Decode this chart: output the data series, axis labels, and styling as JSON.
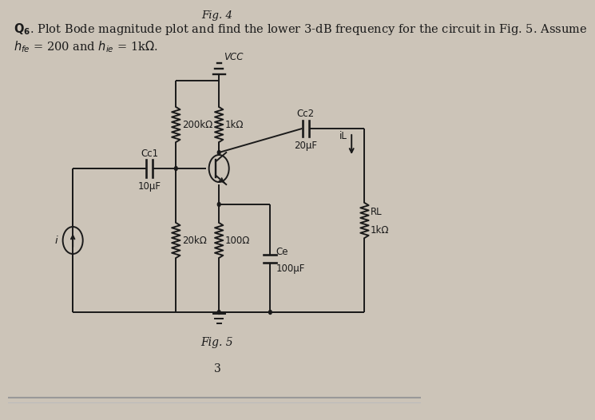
{
  "bg_color": "#ccc4b8",
  "fig_title": "Fig. 4",
  "question_text_line1": "Q6. Plot Bode magnitude plot and find the lower 3-dB frequency for the circuit in Fig. 5. Assume",
  "question_text_line2": "hfe = 200 and hie = 1kΩ.",
  "fig_label": "Fig. 5",
  "page_number": "3",
  "vcc_label": "VCC",
  "r1_label": "200kΩ",
  "r2_label": "1kΩ",
  "cc1_label": "Cc1",
  "cc1_val": "10μF",
  "r3_label": "20kΩ",
  "re_label": "100Ω",
  "ce_label": "Ce",
  "ce_val": "100μF",
  "cc2_label": "Cc2",
  "cc2_val": "20μF",
  "rl_label": "RL",
  "rl_val": "1kΩ",
  "il_label": "iL",
  "i_label": "i",
  "text_color": "#1a1a1a",
  "line_color": "#1a1a1a",
  "font_size_question": 10.5,
  "font_size_label": 8.5,
  "font_size_title": 9.5
}
